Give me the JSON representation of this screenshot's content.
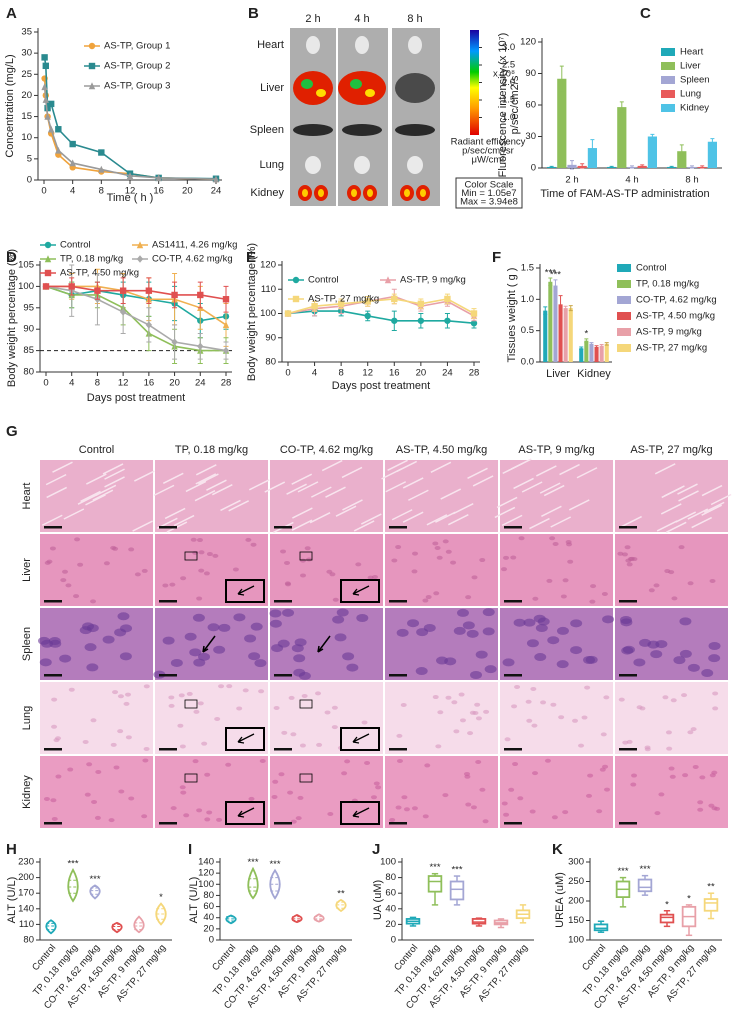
{
  "chart_data": [
    {
      "label": "A",
      "type": "line",
      "ylabel": "Concentration (mg/L)",
      "xlabel": "Time ( h )",
      "x": [
        0.083,
        0.25,
        0.5,
        1,
        2,
        4,
        8,
        12,
        16,
        24
      ],
      "xlim": [
        0,
        24
      ],
      "xticks": [
        0,
        4,
        8,
        12,
        16,
        20,
        24
      ],
      "ylim": [
        0,
        35
      ],
      "yticks": [
        0,
        5,
        10,
        15,
        20,
        25,
        30,
        35
      ],
      "series": [
        {
          "name": "AS-TP, Group 1",
          "color": "#f0a33c",
          "marker": "circle",
          "values": [
            24,
            20,
            15,
            11,
            6,
            3,
            2,
            1.5,
            0.5,
            0.2
          ]
        },
        {
          "name": "AS-TP, Group 2",
          "color": "#2a8a8f",
          "marker": "square",
          "values": [
            29,
            27,
            17,
            18,
            12,
            8.5,
            6.5,
            1.5,
            0.5,
            0.3
          ]
        },
        {
          "name": "AS-TP, Group 3",
          "color": "#9a9a9a",
          "marker": "triangle",
          "values": [
            22,
            19,
            15,
            12,
            7,
            4,
            2.5,
            1,
            0.5,
            0.2
          ]
        }
      ]
    },
    {
      "label": "B",
      "type": "image",
      "columns": [
        "2 h",
        "4 h",
        "8 h"
      ],
      "rows": [
        "Heart",
        "Liver",
        "Spleen",
        "Lung",
        "Kidney"
      ],
      "colorbar_lim": [
        0.5,
        3.5
      ],
      "colorbar_ticks": [
        {
          "value": 3,
          "label": "3.0"
        },
        {
          "value": 2.5,
          "label": "2.5"
        },
        {
          "value": 2,
          "label": "2.0"
        },
        {
          "value": 1.5,
          "label": "1.5"
        },
        {
          "value": 1,
          "label": "1.0"
        }
      ],
      "colorbar_unit": "x 10⁸",
      "colorbar_title": [
        "Radiant efficiency",
        "p/sec/cm²/sr",
        "μW/cm²"
      ],
      "scale_box": [
        "Color Scale",
        "Min = 1.05e7",
        "Max = 3.94e8"
      ]
    },
    {
      "label": "C",
      "type": "bar",
      "ylabel": [
        "Fluorescence intensity (x 10⁷)",
        "p/sec/cm2/s"
      ],
      "xlabel": "Time of FAM-AS-TP administration",
      "categories": [
        "2 h",
        "4 h",
        "8 h"
      ],
      "ylim": [
        0,
        120
      ],
      "yticks": [
        0,
        30,
        60,
        90,
        120
      ],
      "series": [
        {
          "name": "Heart",
          "color": "#1fa9b8",
          "values": [
            1,
            1,
            1
          ],
          "errors": [
            0.5,
            0.5,
            0.5
          ]
        },
        {
          "name": "Liver",
          "color": "#8fbf5a",
          "values": [
            85,
            58,
            16
          ],
          "errors": [
            12,
            5,
            6
          ]
        },
        {
          "name": "Spleen",
          "color": "#a3a6d4",
          "values": [
            3,
            1,
            1
          ],
          "errors": [
            4,
            1,
            1
          ]
        },
        {
          "name": "Lung",
          "color": "#e85a5a",
          "values": [
            2,
            2,
            1
          ],
          "errors": [
            2,
            1,
            1
          ]
        },
        {
          "name": "Kidney",
          "color": "#4fc3e6",
          "values": [
            19,
            30,
            25
          ],
          "errors": [
            8,
            2,
            3
          ]
        }
      ]
    },
    {
      "label": "D",
      "type": "line",
      "ylabel": "Body weight percentage  (%)",
      "xlabel": "Days post treatment",
      "x": [
        0,
        4,
        8,
        12,
        16,
        20,
        24,
        28
      ],
      "xlim": [
        0,
        28
      ],
      "xticks": [
        0,
        4,
        8,
        12,
        16,
        20,
        24,
        28
      ],
      "ylim": [
        80,
        105
      ],
      "yticks": [
        80,
        85,
        90,
        95,
        100,
        105
      ],
      "reference_line": 85,
      "series": [
        {
          "name": "Control",
          "color": "#1fa9a0",
          "marker": "circle",
          "values": [
            100,
            98,
            99,
            98,
            97,
            96,
            92,
            93
          ],
          "errors": [
            0,
            3,
            2,
            3,
            4,
            4,
            4,
            3
          ]
        },
        {
          "name": "AS1411, 4.26 mg/kg",
          "color": "#f0b050",
          "marker": "triangle",
          "values": [
            100,
            100,
            100,
            99,
            97,
            97,
            95,
            91
          ],
          "errors": [
            0,
            3,
            4,
            4,
            5,
            6,
            5,
            5
          ]
        },
        {
          "name": "TP, 0.18 mg/kg",
          "color": "#8fbf5a",
          "marker": "triangle",
          "values": [
            100,
            98,
            98,
            95,
            89,
            86,
            85,
            85
          ],
          "errors": [
            0,
            3,
            3,
            4,
            4,
            4,
            3,
            3
          ]
        },
        {
          "name": "CO-TP, 4.62 mg/kg",
          "color": "#aaaaaa",
          "marker": "diamond",
          "values": [
            100,
            99,
            97,
            94,
            91,
            87,
            86,
            85
          ],
          "errors": [
            0,
            6,
            6,
            5,
            4,
            4,
            3,
            2
          ]
        },
        {
          "name": "AS-TP, 4.50 mg/kg",
          "color": "#e05050",
          "marker": "square",
          "values": [
            100,
            100,
            99,
            99,
            99,
            98,
            98,
            97
          ],
          "errors": [
            0,
            2,
            2,
            3,
            3,
            3,
            3,
            3
          ]
        }
      ]
    },
    {
      "label": "E",
      "type": "line",
      "ylabel": "Body weight percentage  (%)",
      "xlabel": "Days post treatment",
      "x": [
        0,
        4,
        8,
        12,
        16,
        20,
        24,
        28
      ],
      "xlim": [
        0,
        28
      ],
      "xticks": [
        0,
        4,
        8,
        12,
        16,
        20,
        24,
        28
      ],
      "ylim": [
        80,
        120
      ],
      "yticks": [
        80,
        90,
        100,
        110,
        120
      ],
      "series": [
        {
          "name": "Control",
          "color": "#1fa9a0",
          "marker": "circle",
          "values": [
            100,
            101,
            101,
            99,
            97,
            97,
            97,
            96
          ],
          "errors": [
            0,
            2,
            2,
            2,
            4,
            3,
            3,
            2
          ]
        },
        {
          "name": "AS-TP, 9 mg/kg",
          "color": "#e8a0a8",
          "marker": "triangle",
          "values": [
            100,
            102,
            103,
            105,
            107,
            103,
            105,
            99
          ],
          "errors": [
            0,
            3,
            3,
            2,
            3,
            2,
            2,
            2
          ]
        },
        {
          "name": "AS-TP, 27 mg/kg",
          "color": "#f5d77a",
          "marker": "square",
          "values": [
            100,
            103,
            104,
            105,
            106,
            104,
            106,
            100
          ],
          "errors": [
            0,
            2,
            2,
            2,
            2,
            2,
            2,
            2
          ]
        }
      ]
    },
    {
      "label": "F",
      "type": "bar",
      "ylabel": "Tissues weight ( g )",
      "categories": [
        "Liver",
        "Kidney"
      ],
      "ylim": [
        0,
        1.5
      ],
      "yticks": [
        {
          "value": 0,
          "label": "0.0"
        },
        0.5,
        {
          "value": 1,
          "label": "1.0"
        },
        1.5
      ],
      "series": [
        {
          "name": "Control",
          "color": "#1fa9b8",
          "values": [
            0.82,
            0.22
          ],
          "errors": [
            0.06,
            0.02
          ]
        },
        {
          "name": "TP, 0.18 mg/kg",
          "color": "#8fbf5a",
          "values": [
            1.28,
            0.34
          ],
          "errors": [
            0.06,
            0.03
          ],
          "significance": [
            "***",
            "*"
          ]
        },
        {
          "name": "CO-TP, 4.62 mg/kg",
          "color": "#a3a6d4",
          "values": [
            1.22,
            0.29
          ],
          "errors": [
            0.09,
            0.02
          ],
          "significance": [
            "***",
            null
          ]
        },
        {
          "name": "AS-TP, 4.50 mg/kg",
          "color": "#e05050",
          "values": [
            0.92,
            0.24
          ],
          "errors": [
            0.14,
            0.02
          ]
        },
        {
          "name": "AS-TP, 9 mg/kg",
          "color": "#e8a0a8",
          "values": [
            0.86,
            0.26
          ],
          "errors": [
            0.03,
            0.02
          ]
        },
        {
          "name": "AS-TP, 27 mg/kg",
          "color": "#f5d77a",
          "values": [
            0.86,
            0.29
          ],
          "errors": [
            0.04,
            0.02
          ]
        }
      ]
    },
    {
      "label": "G",
      "type": "image",
      "columns": [
        "Control",
        "TP, 0.18 mg/kg",
        "CO-TP, 4.62 mg/kg",
        "AS-TP, 4.50 mg/kg",
        "AS-TP, 9 mg/kg",
        "AS-TP, 27 mg/kg"
      ],
      "rows": [
        "Heart",
        "Liver",
        "Spleen",
        "Lung",
        "Kidney"
      ]
    },
    {
      "label": "H",
      "type": "violin",
      "ylabel": "ALT (U/L)",
      "categories": [
        "Control",
        "TP, 0.18 mg/kg",
        "CO-TP, 4.62 mg/kg",
        "AS-TP, 4.50 mg/kg",
        "AS-TP, 9 mg/kg",
        "AS-TP, 27 mg/kg"
      ],
      "colors": [
        "#1fa9b8",
        "#8fbf5a",
        "#a3a6d4",
        "#e05050",
        "#e8a0a8",
        "#f5d77a"
      ],
      "ylim": [
        80,
        230
      ],
      "yticks": [
        80,
        110,
        140,
        170,
        200,
        230
      ],
      "values": [
        [
          93,
          100,
          107,
          112,
          118
        ],
        [
          155,
          170,
          182,
          195,
          215
        ],
        [
          160,
          168,
          175,
          180,
          185
        ],
        [
          95,
          100,
          106,
          110,
          113
        ],
        [
          95,
          100,
          107,
          113,
          125
        ],
        [
          110,
          120,
          130,
          140,
          150
        ]
      ],
      "significance": [
        null,
        "***",
        "***",
        null,
        null,
        "*"
      ]
    },
    {
      "label": "I",
      "type": "violin",
      "ylabel": "ALT (U/L)",
      "categories": [
        "Control",
        "TP, 0.18 mg/kg",
        "CO-TP, 4.62 mg/kg",
        "AS-TP, 4.50 mg/kg",
        "AS-TP, 9 mg/kg",
        "AS-TP, 27 mg/kg"
      ],
      "colors": [
        "#1fa9b8",
        "#8fbf5a",
        "#a3a6d4",
        "#e05050",
        "#e8a0a8",
        "#f5d77a"
      ],
      "ylim": [
        0,
        140
      ],
      "yticks": [
        0,
        20,
        40,
        60,
        80,
        100,
        120,
        140
      ],
      "values": [
        [
          30,
          34,
          38,
          42,
          44
        ],
        [
          75,
          88,
          95,
          110,
          128
        ],
        [
          75,
          88,
          100,
          112,
          125
        ],
        [
          32,
          35,
          38,
          42,
          45
        ],
        [
          33,
          36,
          38,
          42,
          46
        ],
        [
          52,
          57,
          63,
          68,
          72
        ]
      ],
      "significance": [
        null,
        "***",
        "***",
        null,
        null,
        "**"
      ]
    },
    {
      "label": "J",
      "type": "box",
      "ylabel": "UA (uM)",
      "categories": [
        "Control",
        "TP, 0.18 mg/kg",
        "CO-TP, 4.62 mg/kg",
        "AS-TP, 4.50 mg/kg",
        "AS-TP, 9 mg/kg",
        "AS-TP, 27 mg/kg"
      ],
      "colors": [
        "#1fa9b8",
        "#8fbf5a",
        "#a3a6d4",
        "#e05050",
        "#e8a0a8",
        "#f5d77a"
      ],
      "ylim": [
        0,
        100
      ],
      "yticks": [
        0,
        20,
        40,
        60,
        80,
        100
      ],
      "values": [
        [
          18,
          21,
          24,
          27,
          29
        ],
        [
          45,
          62,
          75,
          82,
          85
        ],
        [
          45,
          52,
          65,
          75,
          82
        ],
        [
          18,
          21,
          23,
          27,
          28
        ],
        [
          16,
          20,
          22,
          25,
          27
        ],
        [
          22,
          28,
          33,
          38,
          45
        ]
      ],
      "significance": [
        null,
        "***",
        "***",
        null,
        null,
        null
      ]
    },
    {
      "label": "K",
      "type": "box",
      "ylabel": "UREA (uM)",
      "categories": [
        "Control",
        "TP, 0.18 mg/kg",
        "CO-TP, 4.62 mg/kg",
        "AS-TP, 4.50 mg/kg",
        "AS-TP, 9 mg/kg",
        "AS-TP, 27 mg/kg"
      ],
      "colors": [
        "#1fa9b8",
        "#8fbf5a",
        "#a3a6d4",
        "#e05050",
        "#e8a0a8",
        "#f5d77a"
      ],
      "ylim": [
        100,
        300
      ],
      "yticks": [
        100,
        150,
        200,
        250,
        300
      ],
      "values": [
        [
          120,
          125,
          130,
          140,
          148
        ],
        [
          185,
          210,
          230,
          250,
          260
        ],
        [
          215,
          225,
          235,
          255,
          265
        ],
        [
          135,
          145,
          158,
          165,
          175
        ],
        [
          112,
          135,
          160,
          185,
          190
        ],
        [
          155,
          175,
          195,
          205,
          220
        ]
      ],
      "significance": [
        null,
        "***",
        "***",
        "*",
        "*",
        "**"
      ]
    }
  ]
}
